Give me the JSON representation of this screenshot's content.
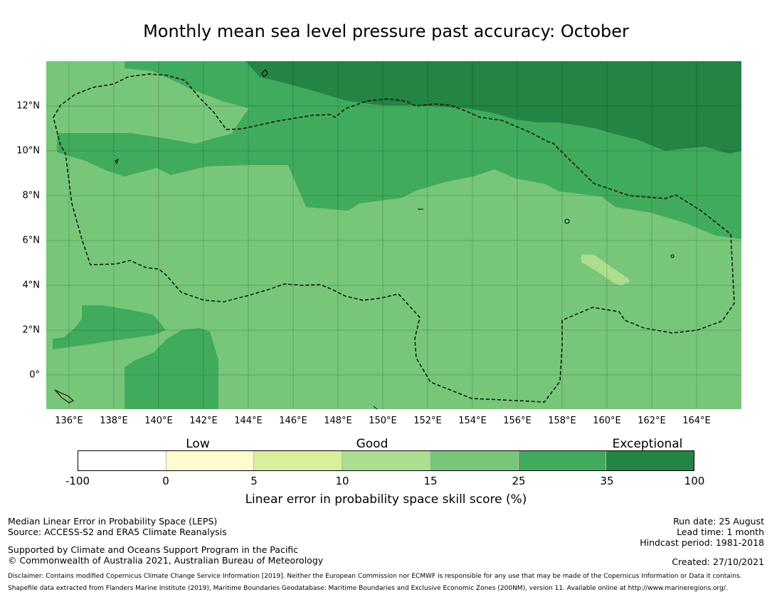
{
  "title": "Monthly mean sea level pressure past accuracy: October",
  "map": {
    "lon_labels": [
      "136°E",
      "138°E",
      "140°E",
      "142°E",
      "144°E",
      "146°E",
      "148°E",
      "150°E",
      "152°E",
      "154°E",
      "156°E",
      "158°E",
      "160°E",
      "162°E",
      "164°E"
    ],
    "lat_labels": [
      "12°N",
      "10°N",
      "8°N",
      "6°N",
      "4°N",
      "2°N",
      "0°"
    ],
    "boundary_style": "dashed",
    "gridlines": true
  },
  "colorbar": {
    "categories": [
      "Low",
      "Good",
      "Exceptional"
    ],
    "ticks": [
      "-100",
      "0",
      "5",
      "10",
      "15",
      "25",
      "35",
      "100"
    ],
    "colors": [
      "#ffffff",
      "#fffdd0",
      "#d9ef9d",
      "#addd8e",
      "#78c679",
      "#41ab5d",
      "#238443"
    ],
    "label": "Linear error in probability space skill score (%)"
  },
  "info_left": {
    "line1": "Median Linear Error in Probability Space (LEPS)",
    "line2": "Source: ACCESS-S2 and ERA5 Climate Reanalysis",
    "line3": "Supported by Climate and Oceans Support Program in the Pacific",
    "line4": "© Commonwealth of Australia 2021, Australian Bureau of Meteorology"
  },
  "info_right": {
    "run_date": "Run date: 25 August",
    "lead_time": "Lead time: 1 month",
    "hindcast": "Hindcast period: 1981-2018",
    "created": "Created: 27/10/2021"
  },
  "disclaimer": {
    "line1": "Disclaimer: Contains modified Copernicus Climate Change Service Information [2019]. Neither the European Commission nor ECMWF is responsible for any use that may be made of the Copernicus Information or Data it contains.",
    "line2": "Shapefile data extracted from Flanders Marine Institute (2019), Maritime Boundaries Geodatabase: Maritime Boundaries and Exclusive Economic Zones (200NM), version 11. Available online at http://www.marineregions.org/."
  }
}
